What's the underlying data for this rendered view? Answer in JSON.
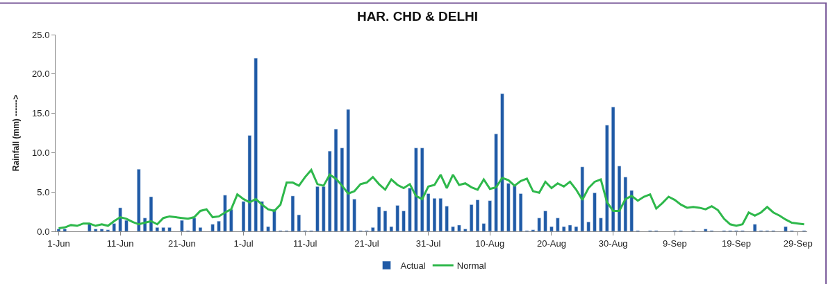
{
  "chart_data": {
    "type": "bar",
    "title": "HAR. CHD & DELHI",
    "ylabel": "Rainfall (mm) ------>",
    "categories": [
      "1-Jun",
      null,
      null,
      null,
      null,
      null,
      null,
      null,
      null,
      null,
      "11-Jun",
      null,
      null,
      null,
      null,
      null,
      null,
      null,
      null,
      null,
      "21-Jun",
      null,
      null,
      null,
      null,
      null,
      null,
      null,
      null,
      null,
      "1-Jul",
      null,
      null,
      null,
      null,
      null,
      null,
      null,
      null,
      null,
      "11-Jul",
      null,
      null,
      null,
      null,
      null,
      null,
      null,
      null,
      null,
      "21-Jul",
      null,
      null,
      null,
      null,
      null,
      null,
      null,
      null,
      null,
      "31-Jul",
      null,
      null,
      null,
      null,
      null,
      null,
      null,
      null,
      null,
      "10-Aug",
      null,
      null,
      null,
      null,
      null,
      null,
      null,
      null,
      null,
      "20-Aug",
      null,
      null,
      null,
      null,
      null,
      null,
      null,
      null,
      null,
      "30-Aug",
      null,
      null,
      null,
      null,
      null,
      null,
      null,
      null,
      null,
      "9-Sep",
      null,
      null,
      null,
      null,
      null,
      null,
      null,
      null,
      null,
      "19-Sep",
      null,
      null,
      null,
      null,
      null,
      null,
      null,
      null,
      null,
      "29-Sep",
      null
    ],
    "series": [
      {
        "name": "Actual",
        "color": "#1f5aa6",
        "values": [
          0.3,
          0.3,
          null,
          null,
          null,
          1.0,
          0.3,
          0.3,
          0.2,
          1.0,
          3.0,
          1.4,
          null,
          7.9,
          1.7,
          4.4,
          0.5,
          0.5,
          0.5,
          null,
          1.4,
          0.1,
          1.7,
          0.5,
          null,
          0.9,
          1.3,
          4.6,
          2.8,
          null,
          3.8,
          12.2,
          22.0,
          3.8,
          0.6,
          2.8,
          0.1,
          0.1,
          4.5,
          2.1,
          0.1,
          0.1,
          5.7,
          5.7,
          10.2,
          13.0,
          10.6,
          15.5,
          4.1,
          0.1,
          0.1,
          0.5,
          3.1,
          2.6,
          0.6,
          3.3,
          2.6,
          5.5,
          10.6,
          10.6,
          4.8,
          4.2,
          4.2,
          3.2,
          0.6,
          0.8,
          0.3,
          3.4,
          4.0,
          1.0,
          3.9,
          12.4,
          17.5,
          6.1,
          5.8,
          4.8,
          0.1,
          0.2,
          1.7,
          2.6,
          0.6,
          1.7,
          0.6,
          0.8,
          0.6,
          8.2,
          1.2,
          4.9,
          1.7,
          13.5,
          15.8,
          8.3,
          6.9,
          5.2,
          0.1,
          null,
          0.1,
          0.1,
          null,
          null,
          0.1,
          0.1,
          null,
          0.1,
          null,
          0.3,
          0.1,
          null,
          0.1,
          0.1,
          0.1,
          0.1,
          null,
          0.9,
          0.1,
          0.1,
          0.1,
          null,
          0.6,
          0.1,
          null,
          0.1
        ]
      },
      {
        "name": "Normal",
        "type": "line",
        "color": "#2eb84b",
        "values": [
          0.4,
          0.5,
          0.8,
          0.7,
          1.0,
          1.0,
          0.7,
          0.9,
          0.7,
          1.3,
          1.8,
          1.6,
          1.2,
          0.9,
          1.1,
          1.3,
          0.9,
          1.7,
          1.9,
          1.8,
          1.7,
          1.6,
          1.8,
          2.6,
          2.8,
          1.8,
          1.9,
          2.4,
          2.8,
          4.7,
          4.1,
          3.7,
          4.1,
          3.4,
          2.8,
          2.6,
          3.4,
          6.2,
          6.2,
          5.8,
          6.9,
          7.8,
          6.0,
          5.8,
          7.2,
          6.7,
          5.8,
          4.8,
          5.1,
          6.0,
          6.2,
          6.9,
          6.0,
          5.3,
          6.6,
          5.9,
          5.5,
          6.0,
          4.5,
          4.1,
          5.7,
          5.9,
          7.2,
          5.5,
          7.2,
          5.9,
          6.1,
          5.6,
          5.3,
          6.6,
          5.4,
          5.6,
          6.8,
          6.5,
          5.8,
          6.4,
          6.7,
          5.1,
          4.9,
          6.3,
          5.5,
          6.1,
          5.7,
          6.3,
          5.3,
          4.0,
          5.5,
          6.3,
          6.6,
          3.7,
          2.6,
          2.6,
          4.1,
          4.5,
          3.9,
          4.4,
          4.7,
          2.9,
          3.6,
          4.4,
          4.0,
          3.4,
          3.0,
          3.1,
          3.0,
          2.8,
          3.2,
          2.7,
          1.6,
          0.9,
          0.7,
          0.9,
          2.4,
          2.0,
          2.4,
          3.1,
          2.4,
          2.0,
          1.5,
          1.1,
          1.0,
          0.9
        ]
      }
    ],
    "ylim": [
      0,
      25
    ],
    "yticks": [
      {
        "value": 0,
        "label": "0.0"
      },
      {
        "value": 5,
        "label": "5.0"
      },
      {
        "value": 10,
        "label": "10.0"
      },
      {
        "value": 15,
        "label": "15.0"
      },
      {
        "value": 20,
        "label": "20.0"
      },
      {
        "value": 25,
        "label": "25.0"
      }
    ],
    "legend": "bottom",
    "marker": "none",
    "line_style": "solid"
  }
}
